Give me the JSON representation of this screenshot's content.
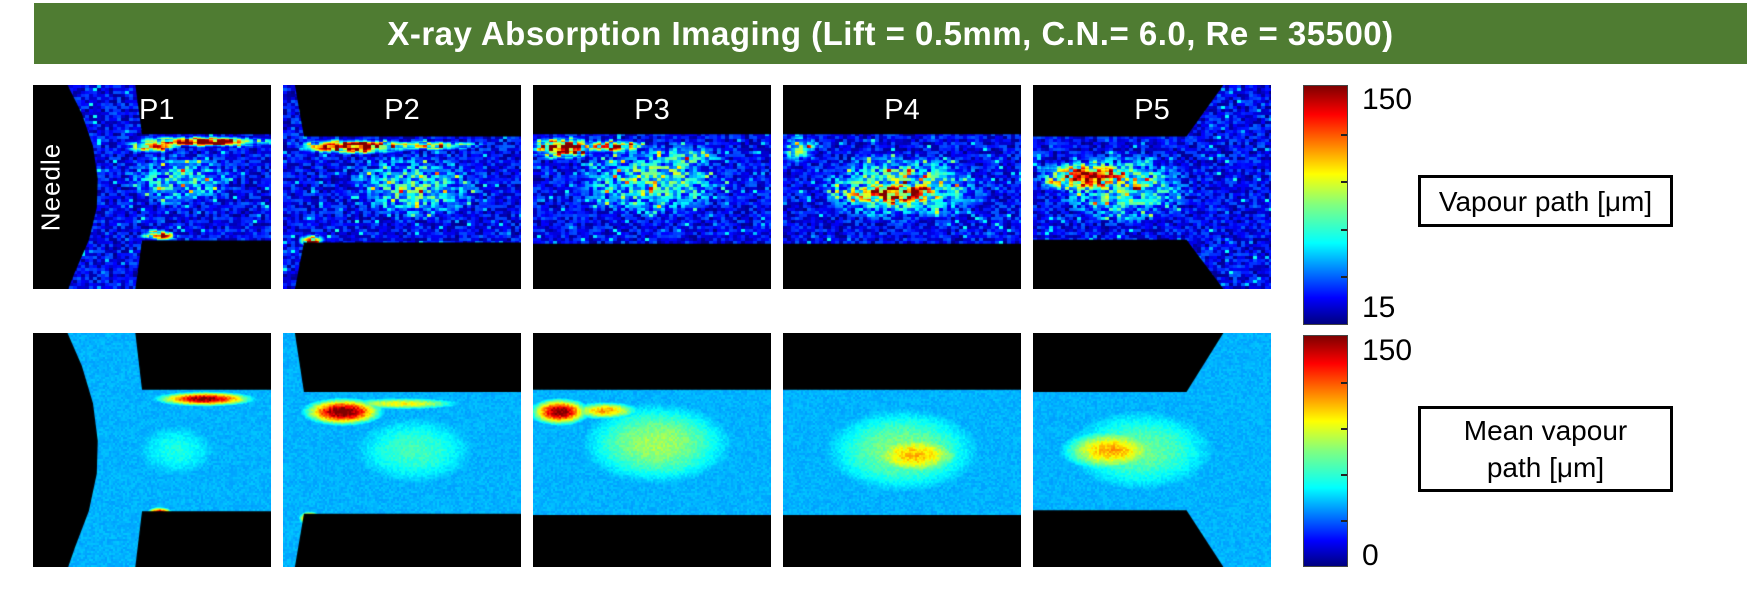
{
  "title": {
    "text": "X-ray Absorption Imaging (Lift = 0.5mm, C.N.= 6.0, Re = 35500)",
    "bg_color": "#4f7c32",
    "fg_color": "#ffffff"
  },
  "chart_data": {
    "type": "heatmap",
    "title": "X-ray Absorption Imaging (Lift = 0.5mm, C.N.= 6.0, Re = 35500)",
    "units": "μm",
    "colormap": "jet",
    "legend_position": "right",
    "rows": [
      {
        "name": "instantaneous-vapour-path",
        "style": "speckle",
        "label_box_lines": [
          "Vapour path [μm]"
        ],
        "colorbar": {
          "min": 15,
          "max": 150,
          "min_label": "15",
          "max_label": "150",
          "ticks": [
            0.2,
            0.4,
            0.6,
            0.8
          ]
        },
        "base": 29,
        "noise": "high",
        "panels": [
          {
            "label": "P1",
            "side_label": "Needle",
            "seed": 11,
            "walls": [
              [
                [
                  0,
                  0
                ],
                [
                  0.145,
                  0
                ],
                [
                  0.205,
                  0.14
                ],
                [
                  0.252,
                  0.3
                ],
                [
                  0.272,
                  0.46
                ],
                [
                  0.268,
                  0.6
                ],
                [
                  0.235,
                  0.76
                ],
                [
                  0.175,
                  0.92
                ],
                [
                  0.148,
                  1
                ],
                [
                  0,
                  1
                ]
              ],
              [
                [
                  0.43,
                  0
                ],
                [
                  1,
                  0
                ],
                [
                  1,
                  0.242
                ],
                [
                  0.458,
                  0.242
                ]
              ],
              [
                [
                  0.43,
                  1
                ],
                [
                  1,
                  1
                ],
                [
                  1,
                  0.762
                ],
                [
                  0.458,
                  0.762
                ]
              ]
            ],
            "blobs": [
              {
                "x": 0.72,
                "y": 0.275,
                "rx": 0.26,
                "ry": 0.022,
                "v": 150
              },
              {
                "x": 0.5,
                "y": 0.3,
                "rx": 0.1,
                "ry": 0.03,
                "v": 120
              },
              {
                "x": 0.53,
                "y": 0.735,
                "rx": 0.07,
                "ry": 0.022,
                "v": 128
              },
              {
                "x": 0.62,
                "y": 0.46,
                "rx": 0.3,
                "ry": 0.17,
                "v": 58
              }
            ]
          },
          {
            "label": "P2",
            "seed": 22,
            "walls": [
              [
                [
                  0.05,
                  0
                ],
                [
                  1,
                  0
                ],
                [
                  1,
                  0.252
                ],
                [
                  0.088,
                  0.252
                ]
              ],
              [
                [
                  0.05,
                  1
                ],
                [
                  1,
                  1
                ],
                [
                  1,
                  0.772
                ],
                [
                  0.088,
                  0.772
                ]
              ]
            ],
            "blobs": [
              {
                "x": 0.3,
                "y": 0.3,
                "rx": 0.2,
                "ry": 0.032,
                "v": 158
              },
              {
                "x": 0.62,
                "y": 0.295,
                "rx": 0.22,
                "ry": 0.022,
                "v": 100
              },
              {
                "x": 0.12,
                "y": 0.76,
                "rx": 0.05,
                "ry": 0.028,
                "v": 140
              },
              {
                "x": 0.55,
                "y": 0.5,
                "rx": 0.34,
                "ry": 0.2,
                "v": 62
              }
            ]
          },
          {
            "label": "P3",
            "seed": 33,
            "walls": [
              [
                [
                  0,
                  0
                ],
                [
                  1,
                  0
                ],
                [
                  1,
                  0.242
                ],
                [
                  0,
                  0.242
                ]
              ],
              [
                [
                  0,
                  1
                ],
                [
                  1,
                  1
                ],
                [
                  1,
                  0.778
                ],
                [
                  0,
                  0.778
                ]
              ]
            ],
            "blobs": [
              {
                "x": 0.12,
                "y": 0.305,
                "rx": 0.12,
                "ry": 0.045,
                "v": 160
              },
              {
                "x": 0.33,
                "y": 0.3,
                "rx": 0.14,
                "ry": 0.028,
                "v": 112
              },
              {
                "x": 0.5,
                "y": 0.47,
                "rx": 0.38,
                "ry": 0.2,
                "v": 68
              },
              {
                "x": 0.62,
                "y": 0.36,
                "rx": 0.25,
                "ry": 0.1,
                "v": 58
              }
            ]
          },
          {
            "label": "P4",
            "seed": 44,
            "walls": [
              [
                [
                  0,
                  0
                ],
                [
                  1,
                  0
                ],
                [
                  1,
                  0.242
                ],
                [
                  0,
                  0.242
                ]
              ],
              [
                [
                  0,
                  1
                ],
                [
                  1,
                  1
                ],
                [
                  1,
                  0.778
                ],
                [
                  0,
                  0.778
                ]
              ]
            ],
            "blobs": [
              {
                "x": 0.47,
                "y": 0.53,
                "rx": 0.24,
                "ry": 0.055,
                "v": 138
              },
              {
                "x": 0.5,
                "y": 0.5,
                "rx": 0.4,
                "ry": 0.19,
                "v": 72
              },
              {
                "x": 0.07,
                "y": 0.31,
                "rx": 0.08,
                "ry": 0.07,
                "v": 85
              }
            ]
          },
          {
            "label": "P5",
            "seed": 55,
            "walls": [
              [
                [
                  0,
                  0
                ],
                [
                  0.8,
                  0
                ],
                [
                  0.645,
                  0.252
                ],
                [
                  0,
                  0.252
                ]
              ],
              [
                [
                  0,
                  1
                ],
                [
                  0.8,
                  1
                ],
                [
                  0.645,
                  0.758
                ],
                [
                  0,
                  0.758
                ]
              ]
            ],
            "blobs": [
              {
                "x": 0.23,
                "y": 0.45,
                "rx": 0.19,
                "ry": 0.075,
                "v": 132
              },
              {
                "x": 0.38,
                "y": 0.5,
                "rx": 0.33,
                "ry": 0.2,
                "v": 68
              }
            ]
          }
        ]
      },
      {
        "name": "mean-vapour-path",
        "style": "smooth",
        "label_box_lines": [
          "Mean vapour",
          "path [μm]"
        ],
        "colorbar": {
          "min": 0,
          "max": 150,
          "min_label": "0",
          "max_label": "150",
          "ticks": [
            0.2,
            0.4,
            0.6,
            0.8
          ]
        },
        "base": 45,
        "noise": "low",
        "panels": [
          {
            "label": "",
            "seed": 66,
            "walls": [
              [
                [
                  0,
                  0
                ],
                [
                  0.145,
                  0
                ],
                [
                  0.205,
                  0.14
                ],
                [
                  0.252,
                  0.3
                ],
                [
                  0.272,
                  0.46
                ],
                [
                  0.268,
                  0.6
                ],
                [
                  0.235,
                  0.76
                ],
                [
                  0.175,
                  0.92
                ],
                [
                  0.148,
                  1
                ],
                [
                  0,
                  1
                ]
              ],
              [
                [
                  0.43,
                  0
                ],
                [
                  1,
                  0
                ],
                [
                  1,
                  0.242
                ],
                [
                  0.458,
                  0.242
                ]
              ],
              [
                [
                  0.43,
                  1
                ],
                [
                  1,
                  1
                ],
                [
                  1,
                  0.762
                ],
                [
                  0.458,
                  0.762
                ]
              ]
            ],
            "blobs": [
              {
                "x": 0.72,
                "y": 0.28,
                "rx": 0.2,
                "ry": 0.03,
                "v": 150
              },
              {
                "x": 0.53,
                "y": 0.765,
                "rx": 0.05,
                "ry": 0.022,
                "v": 148
              },
              {
                "x": 0.6,
                "y": 0.5,
                "rx": 0.3,
                "ry": 0.2,
                "v": 60
              }
            ]
          },
          {
            "label": "",
            "seed": 77,
            "walls": [
              [
                [
                  0.05,
                  0
                ],
                [
                  1,
                  0
                ],
                [
                  1,
                  0.252
                ],
                [
                  0.088,
                  0.252
                ]
              ],
              [
                [
                  0.05,
                  1
                ],
                [
                  1,
                  1
                ],
                [
                  1,
                  0.772
                ],
                [
                  0.088,
                  0.772
                ]
              ]
            ],
            "blobs": [
              {
                "x": 0.25,
                "y": 0.335,
                "rx": 0.16,
                "ry": 0.055,
                "v": 158
              },
              {
                "x": 0.5,
                "y": 0.3,
                "rx": 0.28,
                "ry": 0.028,
                "v": 95
              },
              {
                "x": 0.11,
                "y": 0.79,
                "rx": 0.042,
                "ry": 0.028,
                "v": 152
              },
              {
                "x": 0.55,
                "y": 0.5,
                "rx": 0.4,
                "ry": 0.23,
                "v": 66
              }
            ]
          },
          {
            "label": "",
            "seed": 88,
            "walls": [
              [
                [
                  0,
                  0
                ],
                [
                  1,
                  0
                ],
                [
                  1,
                  0.242
                ],
                [
                  0,
                  0.242
                ]
              ],
              [
                [
                  0,
                  1
                ],
                [
                  1,
                  1
                ],
                [
                  1,
                  0.778
                ],
                [
                  0,
                  0.778
                ]
              ]
            ],
            "blobs": [
              {
                "x": 0.11,
                "y": 0.335,
                "rx": 0.12,
                "ry": 0.055,
                "v": 152
              },
              {
                "x": 0.3,
                "y": 0.33,
                "rx": 0.16,
                "ry": 0.04,
                "v": 108
              },
              {
                "x": 0.52,
                "y": 0.47,
                "rx": 0.42,
                "ry": 0.23,
                "v": 80
              }
            ]
          },
          {
            "label": "",
            "seed": 99,
            "walls": [
              [
                [
                  0,
                  0
                ],
                [
                  1,
                  0
                ],
                [
                  1,
                  0.242
                ],
                [
                  0,
                  0.242
                ]
              ],
              [
                [
                  0,
                  1
                ],
                [
                  1,
                  1
                ],
                [
                  1,
                  0.778
                ],
                [
                  0,
                  0.778
                ]
              ]
            ],
            "blobs": [
              {
                "x": 0.55,
                "y": 0.52,
                "rx": 0.24,
                "ry": 0.1,
                "v": 104
              },
              {
                "x": 0.5,
                "y": 0.5,
                "rx": 0.45,
                "ry": 0.25,
                "v": 76
              }
            ]
          },
          {
            "label": "",
            "seed": 111,
            "walls": [
              [
                [
                  0,
                  0
                ],
                [
                  0.8,
                  0
                ],
                [
                  0.645,
                  0.252
                ],
                [
                  0,
                  0.252
                ]
              ],
              [
                [
                  0,
                  1
                ],
                [
                  0.8,
                  1
                ],
                [
                  0.645,
                  0.758
                ],
                [
                  0,
                  0.758
                ]
              ]
            ],
            "blobs": [
              {
                "x": 0.33,
                "y": 0.5,
                "rx": 0.24,
                "ry": 0.1,
                "v": 106
              },
              {
                "x": 0.45,
                "y": 0.5,
                "rx": 0.45,
                "ry": 0.25,
                "v": 72
              }
            ]
          }
        ]
      }
    ]
  }
}
